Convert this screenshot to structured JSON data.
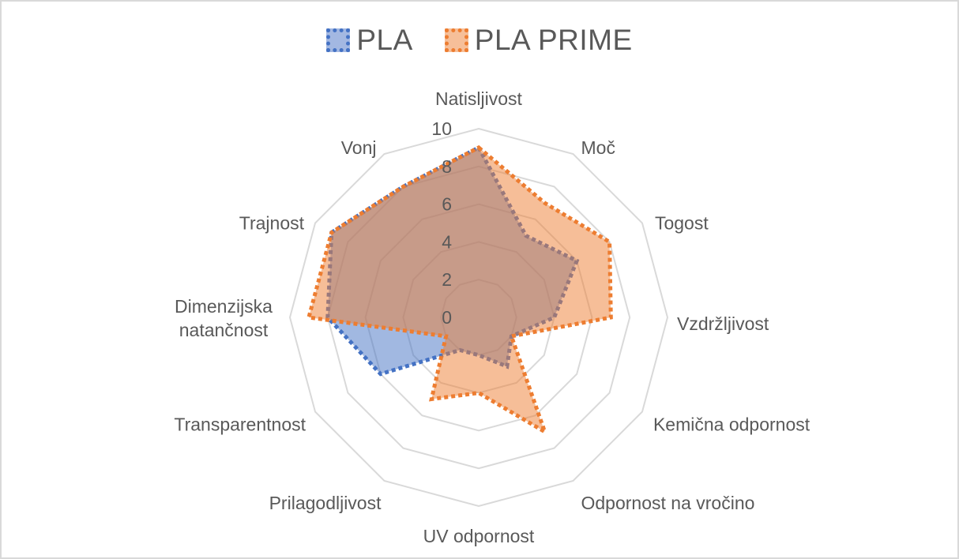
{
  "chart_data": {
    "type": "radar",
    "title": "",
    "categories": [
      "Natisljivost",
      "Moč",
      "Togost",
      "Vzdržljivost",
      "Kemična odpornost",
      "Odpornost na vročino",
      "UV odpornost",
      "Prilagodljivost",
      "Transparentnost",
      "Dimenzijska natančnost",
      "Trajnost",
      "Vonj"
    ],
    "series": [
      {
        "name": "PLA",
        "values": [
          9,
          5,
          6,
          4,
          2,
          3,
          2,
          2,
          6,
          8,
          9,
          8
        ],
        "line_color": "#4472C4",
        "fill_color": "#4472C4",
        "fill_opacity": 0.5
      },
      {
        "name": "PLA PRIME",
        "values": [
          9,
          7,
          8,
          7,
          2,
          7,
          4,
          5,
          2,
          9,
          9,
          8
        ],
        "line_color": "#ED7D31",
        "fill_color": "#ED7D31",
        "fill_opacity": 0.5
      }
    ],
    "radial_ticks": [
      "0",
      "2",
      "4",
      "6",
      "8",
      "10"
    ],
    "rlim": [
      0,
      10
    ],
    "grid": true,
    "legend_position": "top",
    "line_style": "dotted"
  },
  "legend": [
    {
      "label": "PLA",
      "color": "#4472C4",
      "fill": "#A3B8E2"
    },
    {
      "label": "PLA PRIME",
      "color": "#ED7D31",
      "fill": "#F6BF99"
    }
  ],
  "colors": {
    "grid": "#d9d9d9",
    "text": "#595959",
    "border": "#d9d9d9"
  }
}
